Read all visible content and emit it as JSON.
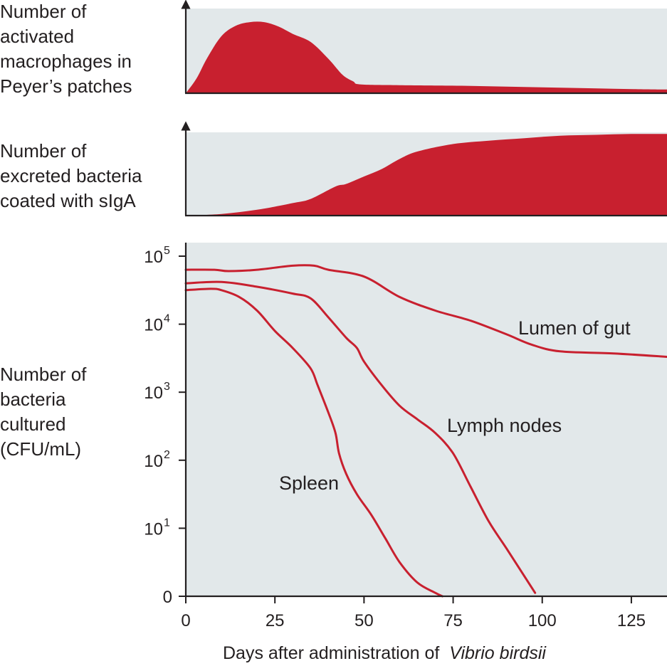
{
  "chart_data": [
    {
      "type": "area",
      "ylabel_lines": [
        "Number of",
        "activated",
        "macrophages in",
        "Peyer’s patches"
      ],
      "x": [
        0,
        3,
        6,
        10,
        14,
        18,
        22,
        26,
        30,
        35,
        40,
        44,
        47,
        49,
        60,
        80,
        100,
        120,
        135
      ],
      "values": [
        0,
        0.2,
        0.48,
        0.78,
        0.92,
        0.97,
        0.97,
        0.91,
        0.81,
        0.7,
        0.47,
        0.25,
        0.16,
        0.12,
        0.11,
        0.1,
        0.08,
        0.06,
        0.05
      ],
      "xlim": [
        0,
        135
      ],
      "ylim": [
        0,
        1
      ],
      "color": "#c8202f",
      "background": "#e2e8ea"
    },
    {
      "type": "area",
      "ylabel_lines": [
        "Number of",
        "excreted bacteria",
        "coated with sIgA"
      ],
      "x": [
        0,
        10,
        20,
        30,
        35,
        42,
        45,
        50,
        55,
        60,
        65,
        75,
        85,
        95,
        105,
        115,
        125,
        135
      ],
      "values": [
        0,
        0.02,
        0.07,
        0.15,
        0.2,
        0.35,
        0.38,
        0.47,
        0.56,
        0.68,
        0.77,
        0.86,
        0.9,
        0.93,
        0.96,
        0.97,
        0.98,
        0.98
      ],
      "xlim": [
        0,
        135
      ],
      "ylim": [
        0,
        1
      ],
      "color": "#c8202f",
      "background": "#e2e8ea"
    },
    {
      "type": "line",
      "ylabel_lines": [
        "Number of",
        "bacteria",
        "cultured",
        "(CFU/mL)"
      ],
      "xlabel": "Days after administration of",
      "xlabel_italic": "Vibrio birdsii",
      "xlim": [
        0,
        135
      ],
      "ylim": [
        0,
        5
      ],
      "yscale": "log",
      "x_ticks": [
        0,
        25,
        50,
        75,
        100,
        125
      ],
      "x_tick_labels": [
        "0",
        "25",
        "50",
        "75",
        "100",
        "125"
      ],
      "y_ticks": [
        {
          "value": 0,
          "base": "0",
          "exp": ""
        },
        {
          "value": 1,
          "base": "10",
          "exp": "1"
        },
        {
          "value": 2,
          "base": "10",
          "exp": "2"
        },
        {
          "value": 3,
          "base": "10",
          "exp": "3"
        },
        {
          "value": 4,
          "base": "10",
          "exp": "4"
        },
        {
          "value": 5,
          "base": "10",
          "exp": "5"
        }
      ],
      "color": "#c8202f",
      "background": "#e2e8ea",
      "series": [
        {
          "name": "Lumen of gut",
          "x": [
            0,
            8,
            12,
            20,
            30,
            36,
            40,
            50,
            60,
            70,
            80,
            90,
            97,
            105,
            120,
            135
          ],
          "y": [
            4.8,
            4.8,
            4.78,
            4.8,
            4.86,
            4.86,
            4.8,
            4.7,
            4.4,
            4.2,
            4.05,
            3.85,
            3.7,
            3.6,
            3.57,
            3.52
          ]
        },
        {
          "name": "Lymph nodes",
          "x": [
            0,
            10,
            20,
            30,
            35,
            40,
            45,
            48,
            50,
            55,
            60,
            65,
            70,
            75,
            80,
            85,
            90,
            98
          ],
          "y": [
            4.6,
            4.62,
            4.55,
            4.45,
            4.38,
            4.1,
            3.8,
            3.65,
            3.45,
            3.1,
            2.8,
            2.6,
            2.4,
            2.1,
            1.6,
            1.1,
            0.7,
            0.05
          ]
        },
        {
          "name": "Spleen",
          "x": [
            0,
            7,
            10,
            15,
            20,
            25,
            30,
            35,
            37,
            40,
            42,
            43,
            45,
            48,
            52,
            56,
            60,
            65,
            70,
            72
          ],
          "y": [
            4.5,
            4.52,
            4.5,
            4.4,
            4.2,
            3.9,
            3.65,
            3.35,
            3.1,
            2.7,
            2.4,
            2.1,
            1.8,
            1.5,
            1.2,
            0.85,
            0.5,
            0.2,
            0.05,
            0
          ]
        }
      ]
    }
  ]
}
